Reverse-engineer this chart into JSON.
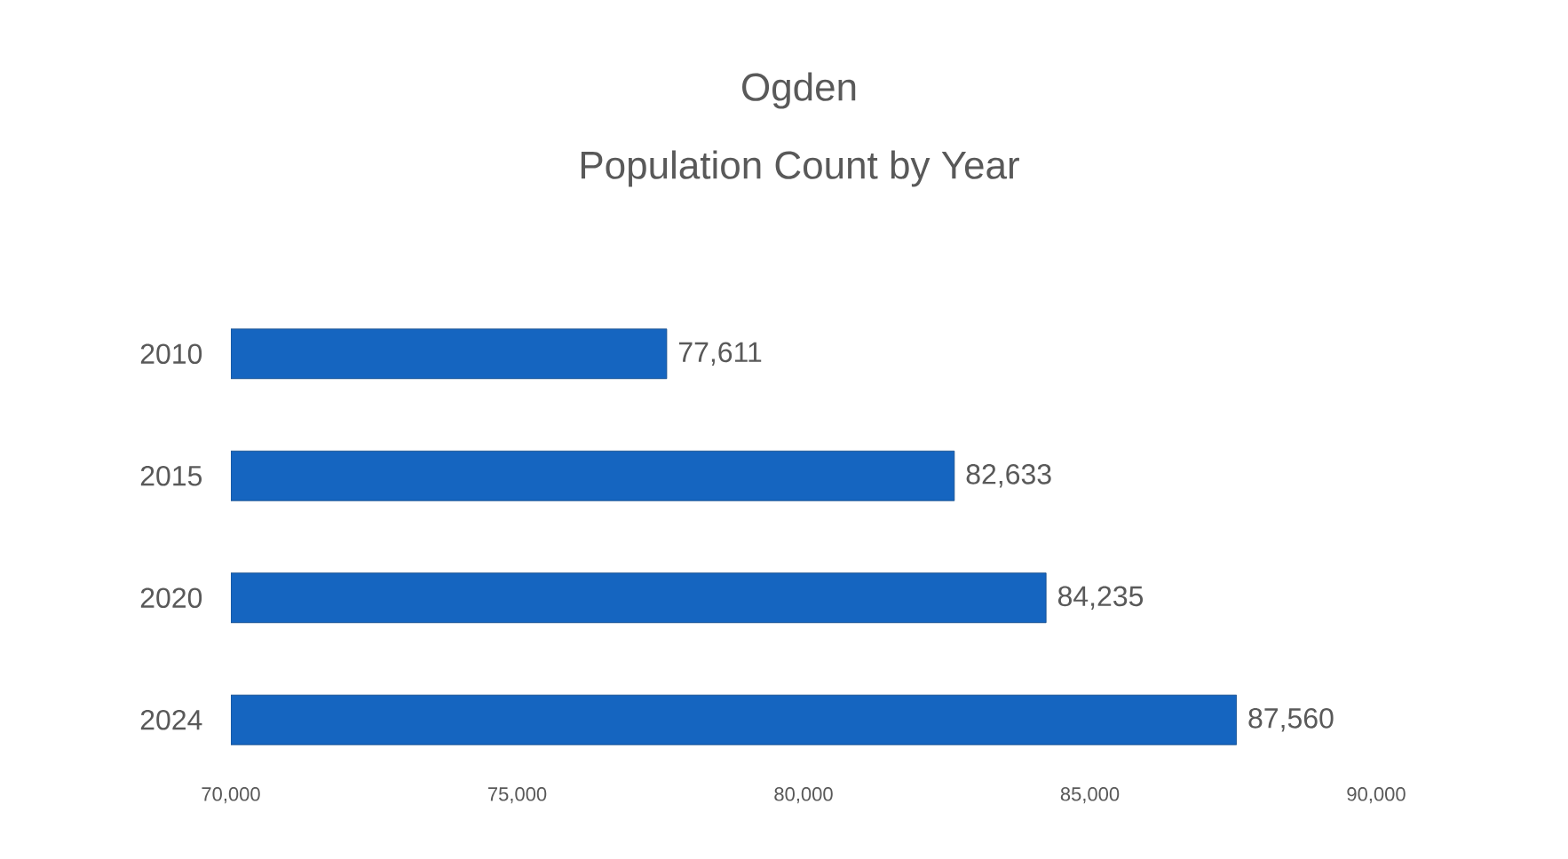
{
  "chart_data": {
    "type": "bar",
    "orientation": "horizontal",
    "title": "Ogden",
    "subtitle": "Population Count by Year",
    "categories": [
      "2010",
      "2015",
      "2020",
      "2024"
    ],
    "values": [
      77611,
      82633,
      84235,
      87560
    ],
    "color": "#1565c0",
    "xlim": [
      70000,
      90000
    ],
    "xticks": [
      {
        "value": 70000,
        "label": "70,000"
      },
      {
        "value": 75000,
        "label": "75,000"
      },
      {
        "value": 80000,
        "label": "80,000"
      },
      {
        "value": 85000,
        "label": "85,000"
      },
      {
        "value": 90000,
        "label": "90,000"
      }
    ],
    "value_labels": [
      "77,611",
      "82,633",
      "84,235",
      "87,560"
    ]
  }
}
